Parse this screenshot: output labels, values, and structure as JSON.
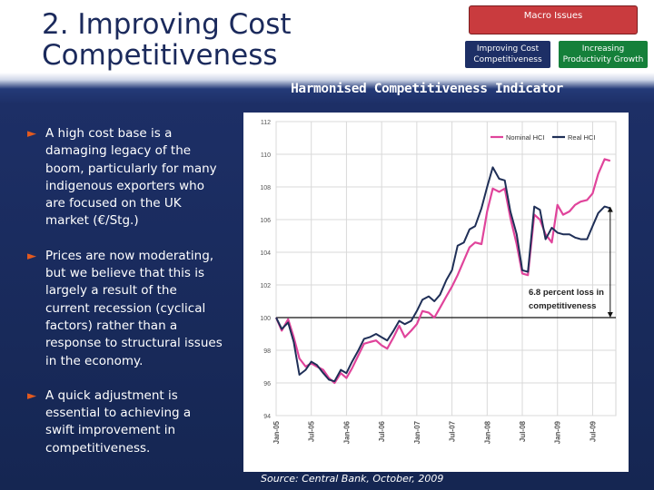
{
  "title": {
    "line1": "2. Improving Cost",
    "line2": "Competitiveness"
  },
  "nav": {
    "macro": "Macro Issues",
    "cost_line1": "Improving Cost",
    "cost_line2": "Competitiveness",
    "prod_line1": "Increasing",
    "prod_line2": "Productivity Growth"
  },
  "chart_heading": "Harmonised Competitiveness Indicator",
  "bullets": [
    {
      "lines": [
        "A high cost base is a",
        "damaging legacy of the",
        "boom, particularly for many",
        "indigenous exporters who",
        "are focused on the UK",
        "market (€/Stg.)"
      ]
    },
    {
      "lines": [
        "Prices are now moderating,",
        "but we believe that this is",
        "largely a result of the",
        "current recession (cyclical",
        "factors) rather than a",
        "response to structural issues",
        "in the economy."
      ]
    },
    {
      "lines": [
        "A quick adjustment is",
        "essential to achieving a",
        "swift improvement in",
        "competitiveness."
      ]
    }
  ],
  "source": {
    "prefix": "Source:",
    "text": " Central Bank, October, 2009"
  },
  "chart_data": {
    "type": "line",
    "title": "Harmonised Competitiveness Indicator",
    "xlabel": "",
    "ylabel": "",
    "ylim": [
      94,
      112
    ],
    "yticks": [
      94,
      96,
      98,
      100,
      102,
      104,
      106,
      108,
      110,
      112
    ],
    "xlim": [
      2005.0,
      2009.83
    ],
    "xticks": [
      {
        "label": "Jan-05",
        "x": 2005.0
      },
      {
        "label": "Jul-05",
        "x": 2005.5
      },
      {
        "label": "Jan-06",
        "x": 2006.0
      },
      {
        "label": "Jul-06",
        "x": 2006.5
      },
      {
        "label": "Jan-07",
        "x": 2007.0
      },
      {
        "label": "Jul-07",
        "x": 2007.5
      },
      {
        "label": "Jan-08",
        "x": 2008.0
      },
      {
        "label": "Jul-08",
        "x": 2008.5
      },
      {
        "label": "Jan-09",
        "x": 2009.0
      },
      {
        "label": "Jul-09",
        "x": 2009.5
      }
    ],
    "grid": true,
    "legend": "top-right",
    "reference_line": {
      "y": 100
    },
    "annotation": {
      "line1": "6.8 percent loss in",
      "line2": "competitiveness",
      "from": 100,
      "to": 106.8,
      "at_x": 2009.75
    },
    "series": [
      {
        "name": "Nominal HCI",
        "color": "#e0449b",
        "x": [
          2005.0,
          2005.08,
          2005.17,
          2005.25,
          2005.33,
          2005.42,
          2005.5,
          2005.58,
          2005.67,
          2005.75,
          2005.83,
          2005.92,
          2006.0,
          2006.08,
          2006.17,
          2006.25,
          2006.33,
          2006.42,
          2006.5,
          2006.58,
          2006.67,
          2006.75,
          2006.83,
          2006.92,
          2007.0,
          2007.08,
          2007.17,
          2007.25,
          2007.33,
          2007.42,
          2007.5,
          2007.58,
          2007.67,
          2007.75,
          2007.83,
          2007.92,
          2008.0,
          2008.08,
          2008.17,
          2008.25,
          2008.33,
          2008.42,
          2008.5,
          2008.58,
          2008.67,
          2008.75,
          2008.83,
          2008.92,
          2009.0,
          2009.08,
          2009.17,
          2009.25,
          2009.33,
          2009.42,
          2009.5,
          2009.58,
          2009.67,
          2009.75
        ],
        "values": [
          100.0,
          99.2,
          99.9,
          98.8,
          97.5,
          97.0,
          97.2,
          97.0,
          96.8,
          96.3,
          96.0,
          96.6,
          96.3,
          96.9,
          97.7,
          98.4,
          98.5,
          98.6,
          98.3,
          98.1,
          98.8,
          99.5,
          98.8,
          99.2,
          99.6,
          100.4,
          100.3,
          100.0,
          100.6,
          101.3,
          101.9,
          102.6,
          103.5,
          104.3,
          104.6,
          104.5,
          106.5,
          107.9,
          107.7,
          107.9,
          106.1,
          104.5,
          102.7,
          102.6,
          106.3,
          106.0,
          105.1,
          104.6,
          106.9,
          106.3,
          106.5,
          106.9,
          107.1,
          107.2,
          107.6,
          108.8,
          109.7,
          109.6
        ]
      },
      {
        "name": "Real HCI",
        "color": "#1f2f57",
        "x": [
          2005.0,
          2005.08,
          2005.17,
          2005.25,
          2005.33,
          2005.42,
          2005.5,
          2005.58,
          2005.67,
          2005.75,
          2005.83,
          2005.92,
          2006.0,
          2006.08,
          2006.17,
          2006.25,
          2006.33,
          2006.42,
          2006.5,
          2006.58,
          2006.67,
          2006.75,
          2006.83,
          2006.92,
          2007.0,
          2007.08,
          2007.17,
          2007.25,
          2007.33,
          2007.42,
          2007.5,
          2007.58,
          2007.67,
          2007.75,
          2007.83,
          2007.92,
          2008.0,
          2008.08,
          2008.17,
          2008.25,
          2008.33,
          2008.42,
          2008.5,
          2008.58,
          2008.67,
          2008.75,
          2008.83,
          2008.92,
          2009.0,
          2009.08,
          2009.17,
          2009.25,
          2009.33,
          2009.42,
          2009.5,
          2009.58,
          2009.67,
          2009.75
        ],
        "values": [
          100.0,
          99.3,
          99.7,
          98.5,
          96.5,
          96.8,
          97.3,
          97.1,
          96.6,
          96.2,
          96.1,
          96.8,
          96.6,
          97.3,
          98.0,
          98.7,
          98.8,
          99.0,
          98.8,
          98.6,
          99.2,
          99.8,
          99.6,
          99.8,
          100.4,
          101.1,
          101.3,
          101.0,
          101.4,
          102.3,
          102.9,
          104.4,
          104.6,
          105.4,
          105.6,
          106.7,
          108.0,
          109.2,
          108.5,
          108.4,
          106.5,
          105.1,
          102.9,
          102.8,
          106.8,
          106.6,
          104.8,
          105.5,
          105.2,
          105.1,
          105.1,
          104.9,
          104.8,
          104.8,
          105.6,
          106.4,
          106.8,
          106.7
        ]
      }
    ]
  }
}
